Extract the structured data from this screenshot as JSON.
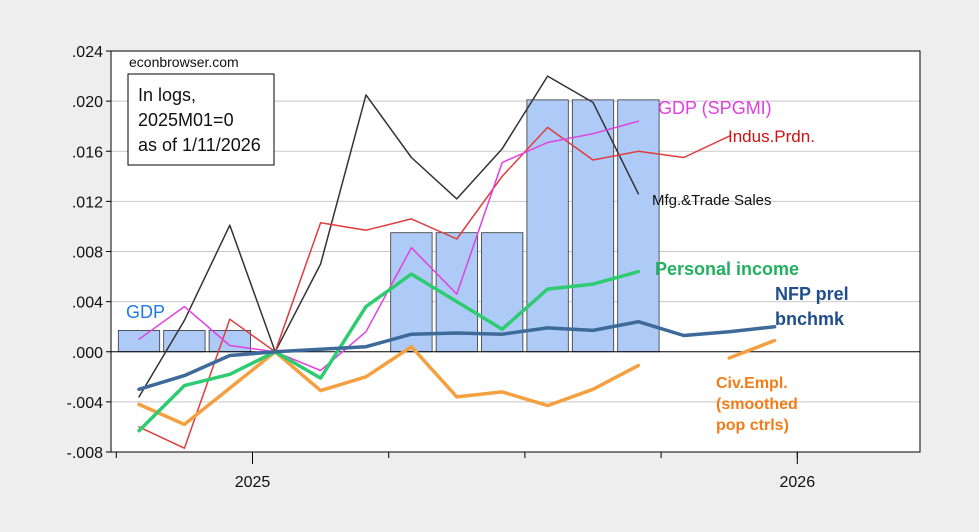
{
  "chart_data": {
    "type": "line",
    "source_label": "econbrowser.com",
    "note_lines": [
      "In logs,",
      "2025M01=0",
      "as of 1/11/2026"
    ],
    "x_tick_labels": [
      "2025",
      "2026"
    ],
    "ylim": [
      -0.008,
      0.024
    ],
    "y_ticks": [
      -0.008,
      -0.004,
      0.0,
      0.004,
      0.008,
      0.012,
      0.016,
      0.02,
      0.024
    ],
    "y_tick_labels": [
      "-.008",
      "-.004",
      ".000",
      ".004",
      ".008",
      ".012",
      ".016",
      ".020",
      ".024"
    ],
    "grid": true,
    "bars": {
      "name": "GDP",
      "color": "#aecbf7",
      "periods": [
        {
          "start": "2024-10",
          "end": "2024-12",
          "value": 0.0017
        },
        {
          "start": "2025-04",
          "end": "2025-06",
          "value": 0.0095
        },
        {
          "start": "2025-07",
          "end": "2025-09",
          "value": 0.0201
        }
      ]
    },
    "series": [
      {
        "name": "Mfg.&Trade Sales",
        "color": "#333333",
        "width": 1.5,
        "points": [
          [
            "2024-10",
            -0.0036
          ],
          [
            "2024-11",
            0.0025
          ],
          [
            "2024-12",
            0.0101
          ],
          [
            "2025-01",
            0.0
          ],
          [
            "2025-02",
            0.007
          ],
          [
            "2025-03",
            0.0205
          ],
          [
            "2025-04",
            0.0155
          ],
          [
            "2025-05",
            0.0122
          ],
          [
            "2025-06",
            0.0162
          ],
          [
            "2025-07",
            0.022
          ],
          [
            "2025-08",
            0.0199
          ],
          [
            "2025-09",
            0.0126
          ]
        ]
      },
      {
        "name": "Indus.Prdn.",
        "color": "#e03c3c",
        "width": 1.5,
        "points": [
          [
            "2024-10",
            -0.006
          ],
          [
            "2024-11",
            -0.0077
          ],
          [
            "2024-12",
            0.0026
          ],
          [
            "2025-01",
            0.0
          ],
          [
            "2025-02",
            0.0103
          ],
          [
            "2025-03",
            0.0097
          ],
          [
            "2025-04",
            0.0106
          ],
          [
            "2025-05",
            0.009
          ],
          [
            "2025-06",
            0.014
          ],
          [
            "2025-07",
            0.0179
          ],
          [
            "2025-08",
            0.0153
          ],
          [
            "2025-09",
            0.016
          ],
          [
            "2025-10",
            0.0155
          ],
          [
            "2025-11",
            0.0172
          ]
        ]
      },
      {
        "name": "GDP (SPGMI)",
        "color": "#e040e0",
        "width": 1.5,
        "points": [
          [
            "2024-10",
            0.001
          ],
          [
            "2024-11",
            0.0036
          ],
          [
            "2024-12",
            0.0005
          ],
          [
            "2025-01",
            0.0
          ],
          [
            "2025-02",
            -0.0015
          ],
          [
            "2025-03",
            0.0016
          ],
          [
            "2025-04",
            0.0083
          ],
          [
            "2025-05",
            0.0046
          ],
          [
            "2025-06",
            0.0151
          ],
          [
            "2025-07",
            0.0167
          ],
          [
            "2025-08",
            0.0174
          ],
          [
            "2025-09",
            0.0184
          ]
        ]
      },
      {
        "name": "Personal income",
        "color": "#2ecc71",
        "width": 3.5,
        "points": [
          [
            "2024-10",
            -0.0063
          ],
          [
            "2024-11",
            -0.0027
          ],
          [
            "2024-12",
            -0.0018
          ],
          [
            "2025-01",
            0.0
          ],
          [
            "2025-02",
            -0.0021
          ],
          [
            "2025-03",
            0.0036
          ],
          [
            "2025-04",
            0.0062
          ],
          [
            "2025-05",
            0.004
          ],
          [
            "2025-06",
            0.0018
          ],
          [
            "2025-07",
            0.005
          ],
          [
            "2025-08",
            0.0054
          ],
          [
            "2025-09",
            0.0064
          ]
        ]
      },
      {
        "name": "NFP prel bnchmk",
        "color": "#3d6a99",
        "width": 3.5,
        "points": [
          [
            "2024-10",
            -0.003
          ],
          [
            "2024-11",
            -0.0019
          ],
          [
            "2024-12",
            -0.0003
          ],
          [
            "2025-01",
            0.0
          ],
          [
            "2025-02",
            0.0002
          ],
          [
            "2025-03",
            0.0004
          ],
          [
            "2025-04",
            0.0014
          ],
          [
            "2025-05",
            0.0015
          ],
          [
            "2025-06",
            0.0014
          ],
          [
            "2025-07",
            0.0019
          ],
          [
            "2025-08",
            0.0017
          ],
          [
            "2025-09",
            0.0024
          ],
          [
            "2025-10",
            0.0013
          ],
          [
            "2025-11",
            0.0016
          ],
          [
            "2025-12",
            0.002
          ]
        ]
      },
      {
        "name": "Civ.Empl. (smoothed pop ctrls)",
        "color": "#f5a040",
        "width": 3.5,
        "points": [
          [
            "2024-10",
            -0.0042
          ],
          [
            "2024-11",
            -0.0058
          ],
          [
            "2024-12",
            -0.0029
          ],
          [
            "2025-01",
            0.0
          ],
          [
            "2025-02",
            -0.0031
          ],
          [
            "2025-03",
            -0.002
          ],
          [
            "2025-04",
            0.0004
          ],
          [
            "2025-05",
            -0.0036
          ],
          [
            "2025-06",
            -0.0032
          ],
          [
            "2025-07",
            -0.0043
          ],
          [
            "2025-08",
            -0.003
          ],
          [
            "2025-09",
            -0.0011
          ],
          null,
          [
            "2025-11",
            -0.0005
          ],
          [
            "2025-12",
            0.0009
          ]
        ]
      }
    ],
    "annotations": [
      {
        "text": "GDP",
        "color": "#1f7be0"
      },
      {
        "text": "GDP (SPGMI)",
        "color": "#e040e0"
      },
      {
        "text": "Indus.Prdn.",
        "color": "#cc1111"
      },
      {
        "text": "Mfg.&Trade Sales",
        "color": "#111111"
      },
      {
        "text": "Personal income",
        "color": "#22b060"
      },
      {
        "text": "NFP prel",
        "color": "#1f4e8c"
      },
      {
        "text": "bnchmk",
        "color": "#1f4e8c"
      },
      {
        "text": "Civ.Empl.",
        "color": "#f07d1a"
      },
      {
        "text": "(smoothed",
        "color": "#f07d1a"
      },
      {
        "text": "pop ctrls)",
        "color": "#f07d1a"
      }
    ]
  }
}
